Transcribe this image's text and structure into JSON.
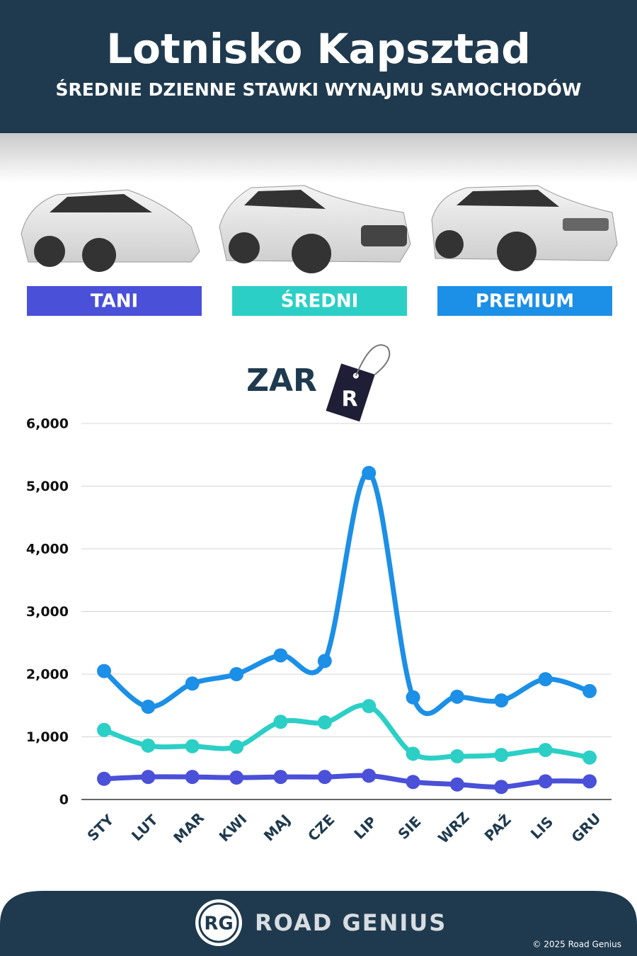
{
  "header": {
    "title": "Lotnisko Kapsztad",
    "subtitle": "ŚREDNIE DZIENNE STAWKI WYNAJMU SAMOCHODÓW"
  },
  "chart_data": {
    "type": "line",
    "unit_label": "ZAR",
    "unit_tag": "R",
    "categories": [
      "STY",
      "LUT",
      "MAR",
      "KWI",
      "MAJ",
      "CZE",
      "LIP",
      "SIE",
      "WRZ",
      "PAŹ",
      "LIS",
      "GRU"
    ],
    "series": [
      {
        "name": "TANI",
        "color": "#4a50d8",
        "values": [
          330,
          360,
          360,
          350,
          360,
          360,
          380,
          280,
          240,
          200,
          290,
          290
        ]
      },
      {
        "name": "ŚREDNI",
        "color": "#2ccfc6",
        "values": [
          1110,
          860,
          850,
          840,
          1240,
          1230,
          1490,
          730,
          690,
          710,
          790,
          670
        ]
      },
      {
        "name": "PREMIUM",
        "color": "#1c8fe6",
        "values": [
          2050,
          1480,
          1850,
          2000,
          2300,
          2210,
          5210,
          1630,
          1640,
          1580,
          1920,
          1730
        ]
      }
    ],
    "ylim": [
      0,
      6000
    ],
    "yticks": [
      0,
      {
        "value": 1000,
        "label": "1,000"
      },
      {
        "value": 2000,
        "label": "2,000"
      },
      {
        "value": 3000,
        "label": "3,000"
      },
      {
        "value": 4000,
        "label": "4,000"
      },
      {
        "value": 5000,
        "label": "5,000"
      },
      {
        "value": 6000,
        "label": "6,000"
      }
    ],
    "grid": true
  },
  "footer": {
    "brand_initials": "RG",
    "brand": "ROAD GENIUS",
    "copyright": "© 2025 Road Genius"
  }
}
